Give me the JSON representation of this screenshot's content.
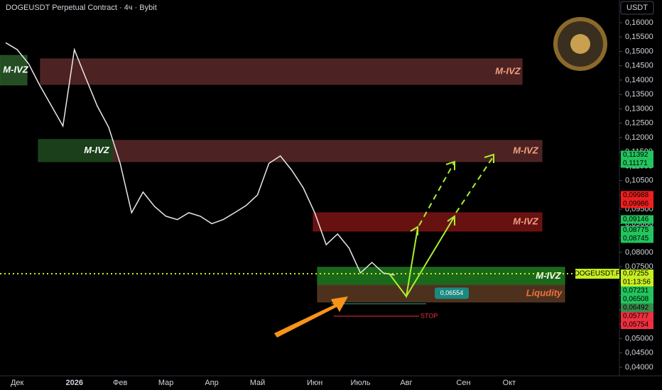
{
  "chart_data": {
    "type": "line",
    "title": "DOGEUSDT Perpetual Contract · 4ч · Bybit",
    "currency": "USDT",
    "categories": [
      null,
      "Дек",
      null,
      null,
      null,
      null,
      "2026",
      null,
      null,
      null,
      "Фев",
      null,
      null,
      null,
      "Мар",
      null,
      null,
      null,
      "Апр",
      null,
      null,
      null,
      "Май",
      null,
      null,
      null,
      null,
      "Июн",
      null,
      null,
      null,
      "Июль",
      null,
      null,
      null,
      "Авг",
      null,
      null,
      null,
      null,
      "Сен",
      null,
      null,
      null,
      "Окт",
      null,
      null,
      null,
      null,
      null,
      null,
      null,
      null,
      null
    ],
    "series": [
      {
        "name": "DOGEUSDT.P",
        "color": "#e8e8e8",
        "values": [
          0.153,
          0.1506,
          0.1457,
          0.138,
          0.131,
          0.124,
          0.1506,
          0.1407,
          0.131,
          0.1235,
          0.111,
          0.0938,
          0.101,
          0.096,
          0.0926,
          0.0914,
          0.0938,
          0.0926,
          0.09,
          0.0914,
          0.0938,
          0.0963,
          0.1,
          0.111,
          0.1136,
          0.1086,
          0.1025,
          0.0938,
          0.0827,
          0.0864,
          0.0815,
          0.0728,
          0.0765,
          0.0728,
          0.0721,
          null,
          null,
          null,
          null,
          null,
          null,
          null,
          null,
          null,
          null,
          null,
          null,
          null,
          null,
          null,
          null,
          null,
          null,
          null
        ]
      }
    ],
    "ylim": [
      0.037,
      0.1679
    ],
    "yticks": [
      {
        "value": 0.04,
        "label": "0,04000"
      },
      {
        "value": 0.045,
        "label": "0,04500"
      },
      {
        "value": 0.05,
        "label": "0,05000"
      },
      {
        "value": 0.055,
        "label": "0,05500"
      },
      {
        "value": 0.06,
        "label": "0,06000"
      },
      {
        "value": 0.065,
        "label": "0,06500"
      },
      {
        "value": 0.07,
        "label": "0,07000"
      },
      {
        "value": 0.075,
        "label": "0,07500"
      },
      {
        "value": 0.08,
        "label": "0,08000"
      },
      {
        "value": 0.085,
        "label": "0,08500"
      },
      {
        "value": 0.09,
        "label": "0,09000"
      },
      {
        "value": 0.095,
        "label": "0,09500"
      },
      {
        "value": 0.1,
        "label": "0,10000"
      },
      {
        "value": 0.105,
        "label": "0,10500"
      },
      {
        "value": 0.11,
        "label": "0,11000"
      },
      {
        "value": 0.115,
        "label": "0,11500"
      },
      {
        "value": 0.12,
        "label": "0,12000"
      },
      {
        "value": 0.125,
        "label": "0,12500"
      },
      {
        "value": 0.13,
        "label": "0,13000"
      },
      {
        "value": 0.135,
        "label": "0,13500"
      },
      {
        "value": 0.14,
        "label": "0,14000"
      },
      {
        "value": 0.145,
        "label": "0,14500"
      },
      {
        "value": 0.15,
        "label": "0,15000"
      },
      {
        "value": 0.155,
        "label": "0,15500"
      },
      {
        "value": 0.16,
        "label": "0,16000"
      }
    ],
    "zones": [
      {
        "label": "M-IVZ",
        "top": 0.1474,
        "bottom": 0.1385,
        "color": "#5a2828",
        "label_color": "#f0a080"
      },
      {
        "label": "M-IVZ",
        "top": 0.1486,
        "bottom": 0.1383,
        "color": "#2a5a2a",
        "label_color": "#ffffff"
      },
      {
        "label": "M-IVZ",
        "top": 0.1193,
        "bottom": 0.1116,
        "color": "#1f4a1f",
        "label_color": "#ffffff"
      },
      {
        "label": "M-IVZ",
        "top": 0.119,
        "bottom": 0.1116,
        "color": "#5a2828",
        "label_color": "#f0a080"
      },
      {
        "label": "M-IVZ",
        "top": 0.0938,
        "bottom": 0.0874,
        "color": "#7a1414",
        "label_color": "#f0a080"
      },
      {
        "label": "M-IVZ",
        "top": 0.0748,
        "bottom": 0.0686,
        "color": "#1e7a1e",
        "label_color": "#ffffff"
      },
      {
        "label": "Liqudity",
        "top": 0.0686,
        "bottom": 0.0627,
        "color": "#5a3a22",
        "label_color": "#f07040"
      }
    ],
    "price_tags": [
      {
        "value": 0.11392,
        "label": "0,11392",
        "color": "#22c55e"
      },
      {
        "value": 0.11171,
        "label": "0,11171",
        "color": "#22c55e"
      },
      {
        "value": 0.09988,
        "label": "0,09988",
        "color": "#ef2020"
      },
      {
        "value": 0.09986,
        "label": "0,09986",
        "color": "#ef2020"
      },
      {
        "value": 0.09146,
        "label": "0,09146",
        "color": "#22c55e"
      },
      {
        "value": 0.08775,
        "label": "0,08775",
        "color": "#22c55e"
      },
      {
        "value": 0.08745,
        "label": "0,08745",
        "color": "#22c55e"
      },
      {
        "value": 0.07255,
        "label": "0,07255",
        "color": "#c8f020"
      },
      {
        "value": 0.07231,
        "label": "0,07231",
        "color": "#22c55e"
      },
      {
        "value": 0.06508,
        "label": "0,06508",
        "color": "#22c55e"
      },
      {
        "value": 0.06492,
        "label": "0,06492",
        "color": "#3a8a4a"
      },
      {
        "value": 0.05777,
        "label": "0,05777",
        "color": "#ef3040"
      },
      {
        "value": 0.05754,
        "label": "0,05754",
        "color": "#ef3040"
      }
    ],
    "countdown": "01:13:56",
    "stop": {
      "label": "STOP",
      "value": 0.05777
    },
    "marker": {
      "value": 0.06554,
      "label": "0,06554"
    }
  }
}
